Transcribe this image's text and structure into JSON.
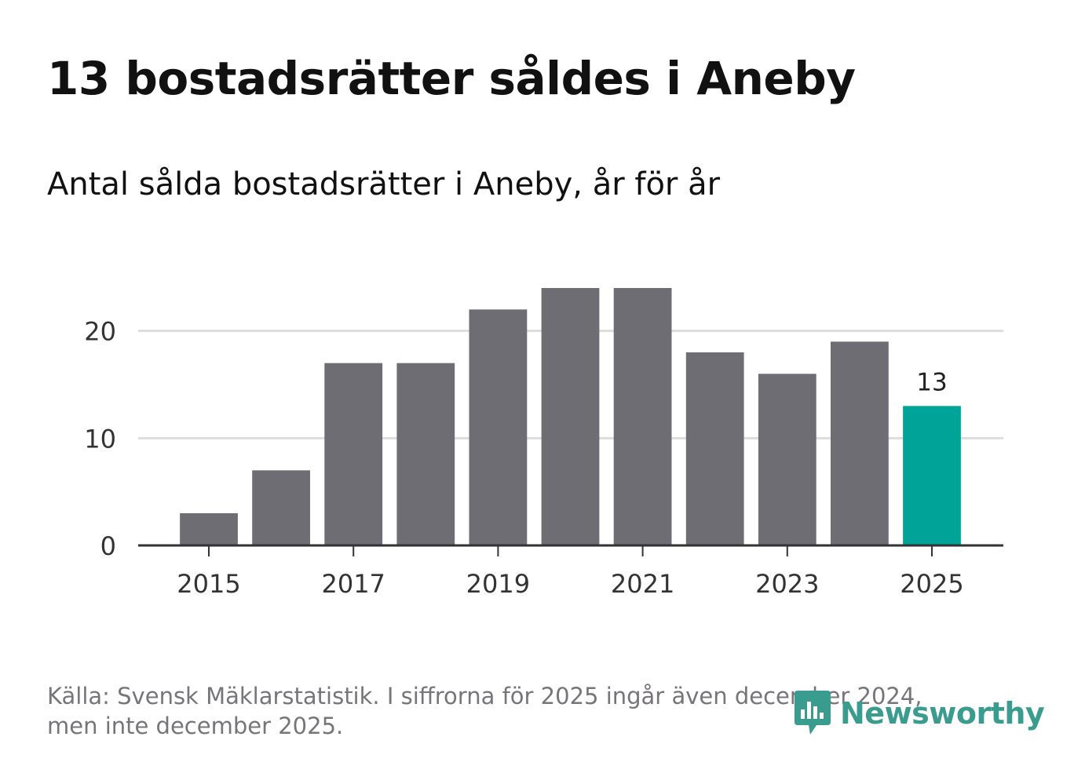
{
  "title": "13 bostadsrätter såldes i Aneby",
  "subtitle": "Antal sålda bostadsrätter i Aneby, år för år",
  "source_line1": "Källa: Svensk Mäklarstatistik. I siffrorna för 2025 ingår även december 2024,",
  "source_line2": "men inte december 2025.",
  "logo_text": "Newsworthy",
  "colors": {
    "bar": "#6e6d73",
    "highlight": "#00a398",
    "grid": "#dddddd",
    "axis": "#333333",
    "logo": "#3a9b8f"
  },
  "chart_data": {
    "type": "bar",
    "title": "Antal sålda bostadsrätter i Aneby, år för år",
    "xlabel": "",
    "ylabel": "",
    "categories": [
      "2015",
      "2016",
      "2017",
      "2018",
      "2019",
      "2020",
      "2021",
      "2022",
      "2023",
      "2024",
      "2025"
    ],
    "values": [
      3,
      7,
      17,
      17,
      22,
      24,
      24,
      18,
      16,
      19,
      13
    ],
    "x_tick_labels": [
      "2015",
      "2017",
      "2019",
      "2021",
      "2023",
      "2025"
    ],
    "y_ticks": [
      0,
      10,
      20
    ],
    "ylim": [
      0,
      24
    ],
    "grid": true,
    "highlight_index": 10,
    "highlight_label": "13"
  }
}
